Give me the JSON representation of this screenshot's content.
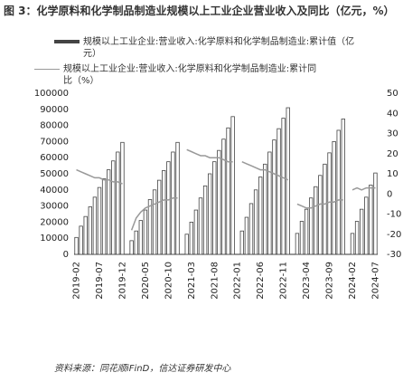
{
  "title": "图 3：化学原料和化学制品制造业规模以上工业企业营业收入及同比（亿元，%）",
  "source": "资料来源：同花顺iFinD，信达证券研发中心",
  "chart_data": {
    "type": "bar-line",
    "categories": [
      "2019-02",
      null,
      null,
      null,
      null,
      "2019-07",
      null,
      null,
      null,
      null,
      "2019-12",
      null,
      null,
      null,
      null,
      "2020-05",
      null,
      null,
      null,
      null,
      "2020-10",
      null,
      null,
      null,
      null,
      "2021-03",
      null,
      null,
      null,
      null,
      "2021-08",
      null,
      null,
      null,
      null,
      "2022-01",
      null,
      null,
      null,
      null,
      "2022-06",
      null,
      null,
      null,
      null,
      "2022-11",
      null,
      null,
      null,
      null,
      "2023-04",
      null,
      null,
      null,
      null,
      "2023-09",
      null,
      null,
      null,
      null,
      "2024-02",
      null,
      null,
      null,
      null,
      "2024-07"
    ],
    "series": [
      {
        "name": "规模以上工业企业:营业收入:化学原料和化学制品制造业:累计值（亿元）",
        "color": "#444444",
        "axis": "y",
        "values": [
          10500,
          17500,
          23500,
          29500,
          35500,
          41500,
          47000,
          52500,
          58000,
          63500,
          69500,
          null,
          8500,
          14500,
          21000,
          27500,
          34000,
          40000,
          46000,
          52000,
          57500,
          63500,
          69500,
          null,
          12500,
          20000,
          27500,
          35000,
          42500,
          50000,
          57500,
          64500,
          71500,
          78500,
          85500,
          null,
          14500,
          23000,
          31500,
          40000,
          48000,
          56000,
          63500,
          71000,
          78000,
          84500,
          91000,
          null,
          13000,
          20500,
          28000,
          35000,
          42000,
          49000,
          56000,
          63000,
          70000,
          77000,
          84000,
          null,
          13000,
          20500,
          28000,
          35500,
          43000,
          50500
        ]
      },
      {
        "name": "规模以上工业企业:营业收入:化学原料和化学制品制造业:累计同比（%）",
        "color": "#999999",
        "axis": "y2",
        "values": [
          12,
          11,
          10,
          9,
          8,
          8,
          7,
          7,
          6,
          6,
          5,
          null,
          -18,
          -12,
          -9,
          -7,
          -6,
          -5,
          -4,
          -3,
          -3,
          -2,
          -2,
          null,
          22,
          21,
          20,
          19,
          19,
          18,
          18,
          18,
          17,
          16,
          16,
          null,
          16,
          15,
          14,
          13,
          12,
          12,
          11,
          10,
          9,
          8,
          7,
          null,
          -5,
          -6,
          -7,
          -7,
          -6,
          -5,
          -5,
          -4,
          -4,
          -3,
          -3,
          null,
          2,
          3,
          2,
          3,
          3,
          3
        ]
      }
    ],
    "ylim": [
      0,
      100000
    ],
    "yticks": [
      0,
      10000,
      20000,
      30000,
      40000,
      50000,
      60000,
      70000,
      80000,
      90000,
      100000
    ],
    "y2lim": [
      -30,
      50
    ],
    "y2ticks": [
      -30,
      -20,
      -10,
      0,
      10,
      20,
      30,
      40,
      50
    ]
  }
}
